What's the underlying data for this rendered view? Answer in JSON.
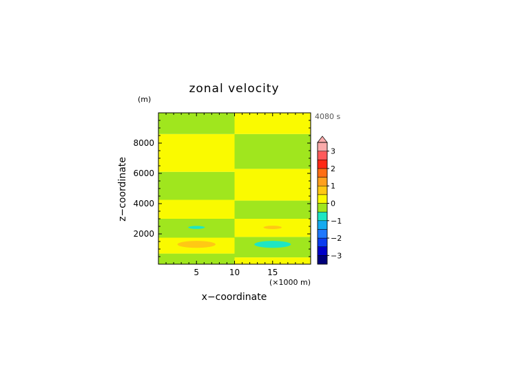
{
  "chart_data": {
    "type": "heatmap",
    "title": "zonal velocity",
    "xlabel": "x−coordinate",
    "ylabel": "z−coordinate",
    "x_unit": "(×1000 m)",
    "y_unit": "(m)",
    "time_label": "4080 s",
    "xlim": [
      0,
      20
    ],
    "ylim": [
      0,
      10000
    ],
    "x_ticks": [
      {
        "v": 5,
        "label": "5"
      },
      {
        "v": 10,
        "label": "10"
      },
      {
        "v": 15,
        "label": "15"
      }
    ],
    "y_ticks": [
      {
        "v": 2000,
        "label": "2000"
      },
      {
        "v": 4000,
        "label": "4000"
      },
      {
        "v": 6000,
        "label": "6000"
      },
      {
        "v": 8000,
        "label": "8000"
      }
    ],
    "colorbar": {
      "range": [
        -3.5,
        3.5
      ],
      "levels": [
        {
          "lo": -3.5,
          "hi": -3,
          "color": "#00007a"
        },
        {
          "lo": -3,
          "hi": -2.5,
          "color": "#0000c8"
        },
        {
          "lo": -2.5,
          "hi": -2,
          "color": "#0a3cf0"
        },
        {
          "lo": -2,
          "hi": -1.5,
          "color": "#1e78ff"
        },
        {
          "lo": -1.5,
          "hi": -1,
          "color": "#14aaf0"
        },
        {
          "lo": -1,
          "hi": -0.5,
          "color": "#1ee6c3"
        },
        {
          "lo": -0.5,
          "hi": 0,
          "color": "#a0e61e"
        },
        {
          "lo": 0,
          "hi": 0.5,
          "color": "#fafa00"
        },
        {
          "lo": 0.5,
          "hi": 1,
          "color": "#ffc814"
        },
        {
          "lo": 1,
          "hi": 1.5,
          "color": "#ffa01e"
        },
        {
          "lo": 1.5,
          "hi": 2,
          "color": "#ff6e14"
        },
        {
          "lo": 2,
          "hi": 2.5,
          "color": "#ff2814"
        },
        {
          "lo": 2.5,
          "hi": 3,
          "color": "#ff5a5a"
        },
        {
          "lo": 3,
          "hi": 3.5,
          "color": "#faaaaa"
        }
      ],
      "ticks": [
        {
          "v": -3,
          "label": "−3"
        },
        {
          "v": -2,
          "label": "−2"
        },
        {
          "v": -1,
          "label": "−1"
        },
        {
          "v": 0,
          "label": "0"
        },
        {
          "v": 1,
          "label": "1"
        },
        {
          "v": 2,
          "label": "2"
        },
        {
          "v": 3,
          "label": "3"
        }
      ],
      "extend": "max"
    },
    "bands": [
      {
        "x0": 0,
        "x1": 10,
        "z0": 0,
        "z1": 700,
        "value": -0.25
      },
      {
        "x0": 0,
        "x1": 10,
        "z0": 700,
        "z1": 1750,
        "value": 0.25
      },
      {
        "x0": 0,
        "x1": 10,
        "z0": 1750,
        "z1": 3000,
        "value": -0.25
      },
      {
        "x0": 0,
        "x1": 10,
        "z0": 3000,
        "z1": 4250,
        "value": 0.25
      },
      {
        "x0": 0,
        "x1": 10,
        "z0": 4250,
        "z1": 6100,
        "value": -0.25
      },
      {
        "x0": 0,
        "x1": 10,
        "z0": 6100,
        "z1": 8600,
        "value": 0.25
      },
      {
        "x0": 0,
        "x1": 10,
        "z0": 8600,
        "z1": 10000,
        "value": -0.25
      },
      {
        "x0": 10,
        "x1": 20,
        "z0": 0,
        "z1": 450,
        "value": 0.25
      },
      {
        "x0": 10,
        "x1": 20,
        "z0": 450,
        "z1": 1800,
        "value": -0.25
      },
      {
        "x0": 10,
        "x1": 20,
        "z0": 1800,
        "z1": 3000,
        "value": 0.25
      },
      {
        "x0": 10,
        "x1": 20,
        "z0": 3000,
        "z1": 4200,
        "value": -0.25
      },
      {
        "x0": 10,
        "x1": 20,
        "z0": 4200,
        "z1": 6300,
        "value": 0.25
      },
      {
        "x0": 10,
        "x1": 20,
        "z0": 6300,
        "z1": 8600,
        "value": -0.25
      },
      {
        "x0": 10,
        "x1": 20,
        "z0": 8600,
        "z1": 10000,
        "value": 0.25
      }
    ],
    "features": [
      {
        "cx": 5.0,
        "cz": 2430,
        "rx": 1.1,
        "rz": 100,
        "value": -0.75
      },
      {
        "cx": 5.0,
        "cz": 1310,
        "rx": 2.5,
        "rz": 230,
        "value": 0.75
      },
      {
        "cx": 15.0,
        "cz": 2430,
        "rx": 1.2,
        "rz": 110,
        "value": 0.75
      },
      {
        "cx": 15.0,
        "cz": 1310,
        "rx": 2.4,
        "rz": 230,
        "value": -0.75
      }
    ]
  }
}
